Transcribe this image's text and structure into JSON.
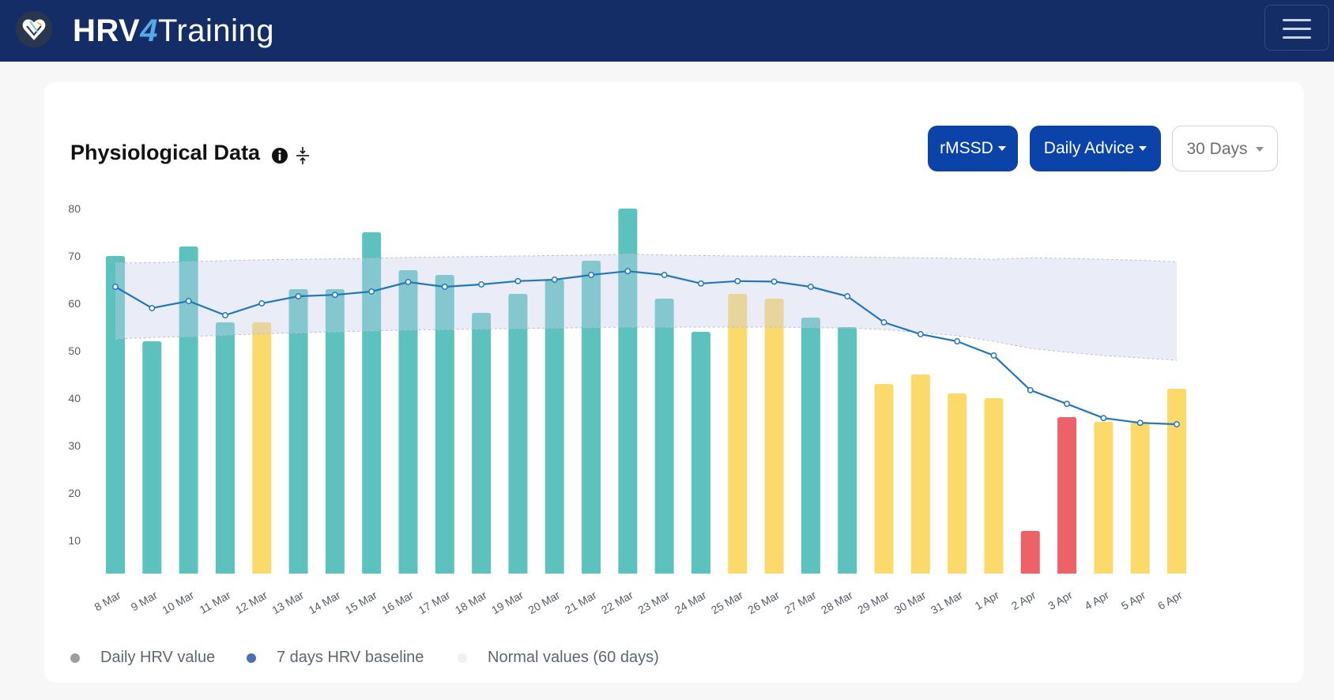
{
  "navbar": {
    "brand_part1": "HRV",
    "brand_part2": "4",
    "brand_part3": "Training",
    "logo_icon": "heart-logo-icon",
    "menu_icon": "hamburger-menu-icon",
    "background": "#142d66"
  },
  "card": {
    "title": "Physiological Data",
    "info_icon": "info-icon",
    "collapse_icon": "collapse-icon",
    "metric_dropdown": "rMSSD",
    "view_dropdown": "Daily Advice",
    "range_dropdown": "30 Days"
  },
  "colors": {
    "green": "#5dc2bd",
    "yellow": "#fcd96b",
    "red": "#ec6266",
    "baseline": "#2176c0",
    "band": "#e9ecf7",
    "primary_button": "#0b43a8"
  },
  "legend": {
    "daily": "Daily HRV value",
    "baseline": "7 days HRV baseline",
    "normal": "Normal values (60 days)"
  },
  "chart_data": {
    "type": "bar",
    "ylim": [
      3,
      80
    ],
    "yticks": [
      10,
      20,
      30,
      40,
      50,
      60,
      70,
      80
    ],
    "grid": false,
    "legend_position": "bottom-left",
    "categories": [
      "8 Mar",
      "9 Mar",
      "10 Mar",
      "11 Mar",
      "12 Mar",
      "13 Mar",
      "14 Mar",
      "15 Mar",
      "16 Mar",
      "17 Mar",
      "18 Mar",
      "19 Mar",
      "20 Mar",
      "21 Mar",
      "22 Mar",
      "23 Mar",
      "24 Mar",
      "25 Mar",
      "26 Mar",
      "27 Mar",
      "28 Mar",
      "29 Mar",
      "30 Mar",
      "31 Mar",
      "1 Apr",
      "2 Apr",
      "3 Apr",
      "4 Apr",
      "5 Apr",
      "6 Apr"
    ],
    "series": [
      {
        "name": "Daily HRV value",
        "type": "bar",
        "values": [
          70,
          52,
          72,
          56,
          56,
          63,
          63,
          75,
          67,
          66,
          58,
          62,
          65,
          69,
          80,
          61,
          54,
          62,
          61,
          57,
          55,
          43,
          45,
          41,
          40,
          12,
          36,
          35,
          35,
          42
        ],
        "advice": [
          "green",
          "green",
          "green",
          "green",
          "yellow",
          "green",
          "green",
          "green",
          "green",
          "green",
          "green",
          "green",
          "green",
          "green",
          "green",
          "green",
          "green",
          "yellow",
          "yellow",
          "green",
          "green",
          "yellow",
          "yellow",
          "yellow",
          "yellow",
          "red",
          "red",
          "yellow",
          "yellow",
          "yellow"
        ]
      },
      {
        "name": "7 days HRV baseline",
        "type": "line",
        "values": [
          63.5,
          59,
          60.5,
          57.5,
          60,
          61.5,
          61.8,
          62.5,
          64.5,
          63.5,
          64,
          64.7,
          65,
          66,
          66.8,
          66,
          64.2,
          64.7,
          64.6,
          63.5,
          61.5,
          56,
          53.5,
          52,
          49,
          41.7,
          38.8,
          35.8,
          34.8,
          34.5
        ]
      },
      {
        "name": "Normal values (60 days)",
        "type": "band",
        "upper": [
          68.5,
          68.6,
          68.8,
          69,
          69.2,
          69.3,
          69.4,
          69.5,
          69.7,
          69.8,
          69.9,
          70,
          70.1,
          70.2,
          70.4,
          70.2,
          70.1,
          70,
          70,
          69.9,
          69.8,
          69.7,
          69.6,
          69.5,
          69.3,
          69.6,
          69.5,
          69.3,
          69.1,
          68.8
        ],
        "lower": [
          52.5,
          52.8,
          53,
          53.3,
          53.6,
          53.8,
          54,
          54.2,
          54.4,
          54.5,
          54.6,
          54.7,
          54.8,
          54.9,
          55,
          55,
          55,
          55,
          55,
          54.9,
          54.8,
          54.5,
          53.8,
          53.2,
          52,
          50.5,
          49.7,
          49,
          48.5,
          48
        ]
      }
    ]
  }
}
